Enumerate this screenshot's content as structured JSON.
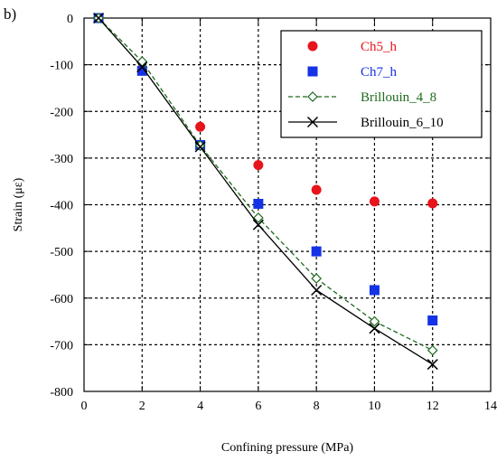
{
  "panel_label": "b)",
  "colors": {
    "ch5": "#e8141b",
    "ch7": "#1432e6",
    "brillouin_4_8": "#1f6b1f",
    "brillouin_6_10": "#000000"
  },
  "chart_data": {
    "type": "scatter",
    "title": "",
    "xlabel": "Confining pressure (MPa)",
    "ylabel": "Strain (με)",
    "xlim": [
      0,
      14
    ],
    "ylim": [
      -800,
      0
    ],
    "xticks": [
      0,
      2,
      4,
      6,
      8,
      10,
      12,
      14
    ],
    "yticks": [
      0,
      -100,
      -200,
      -300,
      -400,
      -500,
      -600,
      -700,
      -800
    ],
    "grid": true,
    "legend_position": "top-right",
    "series": [
      {
        "name": "Ch5_h",
        "style": "scatter",
        "marker": "circle",
        "color": "#e8141b",
        "x": [
          0.5,
          2,
          4,
          6,
          8,
          10,
          12
        ],
        "y": [
          0,
          -110,
          -233,
          -315,
          -368,
          -393,
          -397
        ]
      },
      {
        "name": "Ch7_h",
        "style": "scatter",
        "marker": "square",
        "color": "#1432e6",
        "x": [
          0.5,
          2,
          4,
          6,
          8,
          10,
          12
        ],
        "y": [
          0,
          -113,
          -272,
          -398,
          -500,
          -583,
          -648
        ]
      },
      {
        "name": "Brillouin_4_8",
        "style": "dashed-line",
        "marker": "diamond",
        "color": "#1f6b1f",
        "x": [
          0.5,
          2,
          4,
          6,
          8,
          10,
          12
        ],
        "y": [
          0,
          -93,
          -273,
          -428,
          -558,
          -650,
          -712
        ]
      },
      {
        "name": "Brillouin_6_10",
        "style": "solid-line",
        "marker": "x",
        "color": "#000000",
        "x": [
          0.5,
          2,
          4,
          6,
          8,
          10,
          12
        ],
        "y": [
          0,
          -105,
          -276,
          -443,
          -583,
          -665,
          -742
        ]
      }
    ]
  }
}
